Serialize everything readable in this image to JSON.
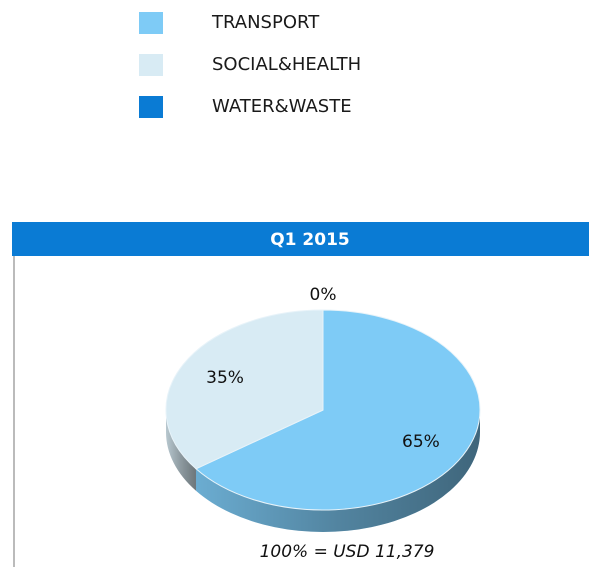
{
  "chart_data": {
    "type": "pie3d",
    "title": "Q1 2015",
    "categories": [
      "TRANSPORT",
      "SOCIAL&HEALTH",
      "WATER&WASTE"
    ],
    "values": [
      65,
      35,
      0
    ],
    "value_labels": [
      "65%",
      "35%",
      "0%"
    ],
    "colors": [
      "#7ecbf6",
      "#d8ebf4",
      "#0a7bd4"
    ],
    "annotation": "100% = USD 11,379"
  }
}
